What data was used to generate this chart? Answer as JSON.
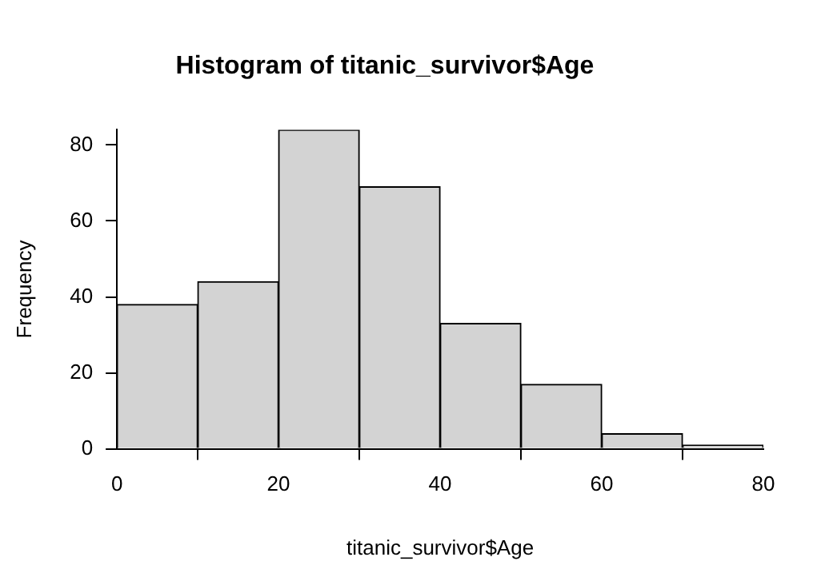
{
  "chart_data": {
    "type": "histogram",
    "title": "Histogram of titanic_survivor$Age",
    "xlabel": "titanic_survivor$Age",
    "ylabel": "Frequency",
    "bins": [
      0,
      10,
      20,
      30,
      40,
      50,
      60,
      70,
      80
    ],
    "values": [
      38,
      44,
      84,
      69,
      33,
      17,
      4,
      1
    ],
    "color": "#d3d3d3",
    "xlim": [
      0,
      80
    ],
    "xticks": [
      0,
      20,
      40,
      60,
      80
    ],
    "ylim": [
      0,
      84
    ],
    "yticks": [
      0,
      20,
      40,
      60,
      80
    ],
    "grid": false,
    "legend": false
  }
}
